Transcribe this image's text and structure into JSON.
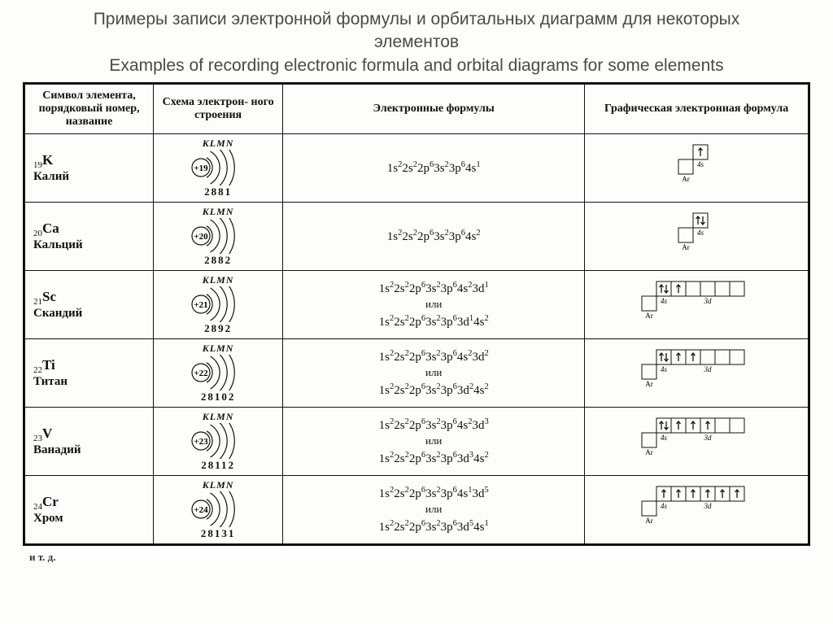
{
  "title_ru": "Примеры записи электронной формулы и орбитальных диаграмм для некоторых элементов",
  "title_en": "Examples of recording electronic formula and orbital diagrams for some elements",
  "headers": {
    "col1": "Символ элемента, порядковый номер, название",
    "col2": "Схема электрон-\nного строения",
    "col3": "Электронные формулы",
    "col4": "Графическая электронная формула"
  },
  "shell_labels": "KLMN",
  "ili": "или",
  "footer": "и т. д.",
  "elements": [
    {
      "num": "19",
      "sym": "K",
      "name": "Калий",
      "shell_nums": "2881",
      "formula1": "1s<sup>2</sup>2s<sup>2</sup>2p<sup>6</sup>3s<sup>2</sup>3p<sup>6</sup>4s<sup>1</sup>",
      "formula2": "",
      "orb_4s": [
        1
      ],
      "orb_3d": null
    },
    {
      "num": "20",
      "sym": "Ca",
      "name": "Кальций",
      "shell_nums": "2882",
      "formula1": "1s<sup>2</sup>2s<sup>2</sup>2p<sup>6</sup>3s<sup>2</sup>3p<sup>6</sup>4s<sup>2</sup>",
      "formula2": "",
      "orb_4s": [
        2
      ],
      "orb_3d": null
    },
    {
      "num": "21",
      "sym": "Sc",
      "name": "Скандий",
      "shell_nums": "2892",
      "formula1": "1s<sup>2</sup>2s<sup>2</sup>2p<sup>6</sup>3s<sup>2</sup>3p<sup>6</sup>4s<sup>2</sup>3d<sup>1</sup>",
      "formula2": "1s<sup>2</sup>2s<sup>2</sup>2p<sup>6</sup>3s<sup>2</sup>3p<sup>6</sup>3d<sup>1</sup>4s<sup>2</sup>",
      "orb_4s": [
        2
      ],
      "orb_3d": [
        1,
        0,
        0,
        0,
        0
      ]
    },
    {
      "num": "22",
      "sym": "Ti",
      "name": "Титан",
      "shell_nums": "28102",
      "formula1": "1s<sup>2</sup>2s<sup>2</sup>2p<sup>6</sup>3s<sup>2</sup>3p<sup>6</sup>4s<sup>2</sup>3d<sup>2</sup>",
      "formula2": "1s<sup>2</sup>2s<sup>2</sup>2p<sup>6</sup>3s<sup>2</sup>3p<sup>6</sup>3d<sup>2</sup>4s<sup>2</sup>",
      "orb_4s": [
        2
      ],
      "orb_3d": [
        1,
        1,
        0,
        0,
        0
      ]
    },
    {
      "num": "23",
      "sym": "V",
      "name": "Ванадий",
      "shell_nums": "28112",
      "formula1": "1s<sup>2</sup>2s<sup>2</sup>2p<sup>6</sup>3s<sup>2</sup>3p<sup>6</sup>4s<sup>2</sup>3d<sup>3</sup>",
      "formula2": "1s<sup>2</sup>2s<sup>2</sup>2p<sup>6</sup>3s<sup>2</sup>3p<sup>6</sup>3d<sup>3</sup>4s<sup>2</sup>",
      "orb_4s": [
        2
      ],
      "orb_3d": [
        1,
        1,
        1,
        0,
        0
      ]
    },
    {
      "num": "24",
      "sym": "Cr",
      "name": "Хром",
      "shell_nums": "28131",
      "formula1": "1s<sup>2</sup>2s<sup>2</sup>2p<sup>6</sup>3s<sup>2</sup>3p<sup>6</sup>4s<sup>1</sup>3d<sup>5</sup>",
      "formula2": "1s<sup>2</sup>2s<sup>2</sup>2p<sup>6</sup>3s<sup>2</sup>3p<sup>6</sup>3d<sup>5</sup>4s<sup>1</sup>",
      "orb_4s": [
        1
      ],
      "orb_3d": [
        1,
        1,
        1,
        1,
        1
      ]
    }
  ],
  "orb_labels": {
    "ar": "Ar",
    "s4": "4s",
    "d3": "3d"
  },
  "colors": {
    "bg": "#fdfdfc",
    "title": "#4a4a48",
    "border": "#111111",
    "text": "#111111"
  },
  "box_size": 18
}
